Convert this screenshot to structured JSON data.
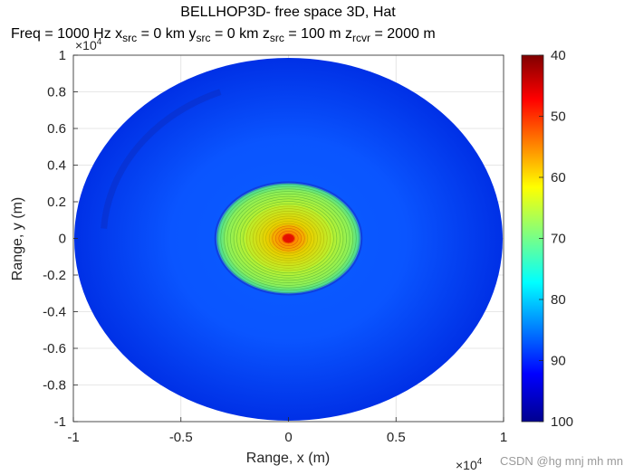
{
  "chart_data": {
    "type": "heatmap",
    "title_line_1": "BELLHOP3D- free space 3D, Hat",
    "title_line_2": [
      {
        "text": "Freq = 1000 Hz   x"
      },
      {
        "text": "src",
        "sub": true
      },
      {
        "text": " = 0 km   y"
      },
      {
        "text": "src",
        "sub": true
      },
      {
        "text": " = 0 km   z"
      },
      {
        "text": "src",
        "sub": true
      },
      {
        "text": " = 100 m    z"
      },
      {
        "text": "rcvr",
        "sub": true
      },
      {
        "text": " = 2000 m"
      }
    ],
    "xlabel": "Range, x (m)",
    "ylabel": "Range, y (m)",
    "xlim": [
      -10000,
      10000
    ],
    "ylim": [
      -10000,
      10000
    ],
    "x_ticks": [
      "-1",
      "-0.5",
      "0",
      "0.5",
      "1"
    ],
    "y_ticks": [
      "1",
      "0.8",
      "0.6",
      "0.4",
      "0.2",
      "0",
      "-0.2",
      "-0.4",
      "-0.6",
      "-0.8",
      "-1"
    ],
    "x_exponent": "×10",
    "y_exponent": "×10",
    "exponent_power": "4",
    "grid": true,
    "colorbar": {
      "colormap": "jet",
      "reversed": true,
      "clim": [
        40,
        100
      ],
      "ticks": [
        "40",
        "50",
        "60",
        "70",
        "80",
        "90",
        "100"
      ]
    },
    "field": {
      "outer_radius_x_m": 10000,
      "outer_radius_y_m": 10000,
      "inner_radius_m": 3400,
      "outer_level": 90,
      "inner_level": 65,
      "center_level": 52
    }
  },
  "watermark": "CSDN @hg mnj mh mn"
}
